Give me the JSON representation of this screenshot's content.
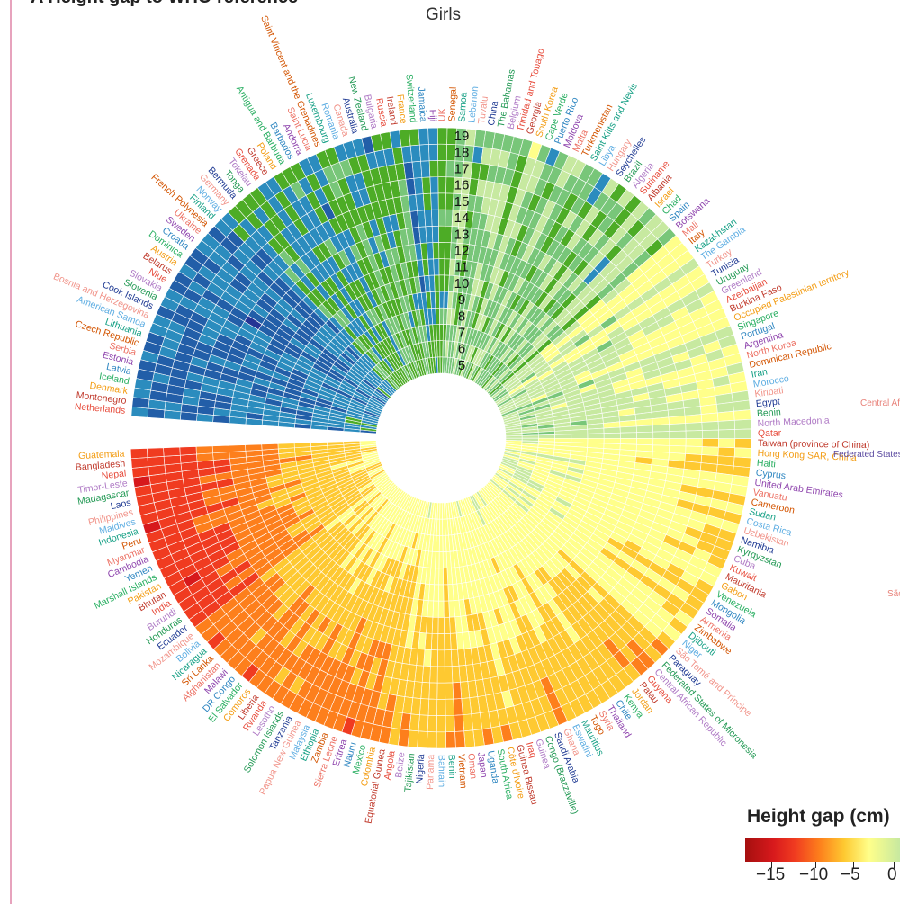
{
  "header": {
    "panel_label": "A  Height gap to WHO reference",
    "subtitle": "Girls"
  },
  "legend": {
    "title": "Height gap (cm)",
    "ticks": [
      "−15",
      "−10",
      "−5",
      "0"
    ]
  },
  "colors": {
    "scale": [
      "#a50f0f",
      "#d7191c",
      "#f03b20",
      "#fd7f1c",
      "#fec931",
      "#ffff8a",
      "#c7e9a0",
      "#78c679",
      "#4dac26",
      "#2b8cbe",
      "#225ea8",
      "#253494"
    ],
    "label_palette": [
      "#e74c3c",
      "#c0392b",
      "#f39c12",
      "#27ae60",
      "#2e86c1",
      "#8e44ad",
      "#ec7063",
      "#d35400",
      "#16a085",
      "#5dade2",
      "#f1948a",
      "#1f3a93",
      "#229954",
      "#af7ac5"
    ]
  },
  "chart_data": {
    "type": "radial-heatmap",
    "title": "Girls",
    "value_label": "Height gap (cm)",
    "ages": [
      5,
      6,
      7,
      8,
      9,
      10,
      11,
      12,
      13,
      14,
      15,
      16,
      17,
      18,
      19
    ],
    "age_labels": [
      "19",
      "18",
      "17",
      "16",
      "15",
      "14",
      "13",
      "12",
      "11",
      "10",
      "9",
      "8",
      "7",
      "6",
      "5"
    ],
    "countries": [
      "Netherlands",
      "Montenegro",
      "Denmark",
      "Iceland",
      "Latvia",
      "Estonia",
      "Serbia",
      "Czech Republic",
      "Lithuania",
      "American Samoa",
      "Bosnia and Herzegovina",
      "Cook Islands",
      "Slovenia",
      "Slovakia",
      "Niue",
      "Belarus",
      "Austria",
      "Dominica",
      "Croatia",
      "Sweden",
      "Ukraine",
      "French Polynesia",
      "Finland",
      "Norway",
      "Germany",
      "Bermuda",
      "Tonga",
      "Tokelau",
      "Grenada",
      "Greece",
      "Poland",
      "Antigua and Barbuda",
      "Barbados",
      "Andorra",
      "Saint Lucia",
      "Saint Vincent and the Grenadines",
      "Luxembourg",
      "Romania",
      "Canada",
      "Australia",
      "New Zealand",
      "Bulgaria",
      "Russia",
      "Ireland",
      "France",
      "Switzerland",
      "Jamaica",
      "Fiji",
      "UK",
      "Senegal",
      "Samoa",
      "Lebanon",
      "Tuvalu",
      "China",
      "The Bahamas",
      "Belgium",
      "Trinidad and Tobago",
      "Georgia",
      "South Korea",
      "Cape Verde",
      "Puerto Rico",
      "Moldova",
      "Malta",
      "Turkmenistan",
      "Saint Kitts and Nevis",
      "Libya",
      "Hungary",
      "Seychelles",
      "Brazil",
      "Algeria",
      "Suriname",
      "Albania",
      "Israel",
      "Chad",
      "Spain",
      "Botswana",
      "Mali",
      "Italy",
      "Kazakhstan",
      "The Gambia",
      "Turkey",
      "Tunisia",
      "Uruguay",
      "Greenland",
      "Azerbaijan",
      "Burkina Faso",
      "Occupied Palestinian territory",
      "Singapore",
      "Portugal",
      "Argentina",
      "North Korea",
      "Dominican Republic",
      "Iran",
      "Morocco",
      "Kiribati",
      "Egypt",
      "Benin",
      "North Macedonia",
      "Qatar",
      "Taiwan (province of China)",
      "Hong Kong SAR, China",
      "Haiti",
      "Cyprus",
      "United Arab Emirates",
      "Vanuatu",
      "Cameroon",
      "Sudan",
      "Costa Rica",
      "Uzbekistan",
      "Namibia",
      "Kyrgyzstan",
      "Cuba",
      "Kuwait",
      "Mauritania",
      "Gabon",
      "Venezuela",
      "Mongolia",
      "Somalia",
      "Armenia",
      "Zimbabwe",
      "Djibouti",
      "Niger",
      "São Tomé and Príncipe",
      "Paraguay",
      "Federated States of Micronesia",
      "Central African Republic",
      "Guyana",
      "Palau",
      "Jordan",
      "Kenya",
      "Chile",
      "Thailand",
      "Syria",
      "Togo",
      "Mauritius",
      "Eswatini",
      "Ghana",
      "Saudi Arabia",
      "Congo (Brazzaville)",
      "Guinea",
      "Iraq",
      "Guinea Bissau",
      "Côte d'Ivoire",
      "South Africa",
      "Uganda",
      "Japan",
      "Oman",
      "Vietnam",
      "Benin",
      "Bahrain",
      "Panama",
      "Nigeria",
      "Tajikistan",
      "Belize",
      "Angola",
      "Equatorial Guinea",
      "Colombia",
      "Mexico",
      "Nauru",
      "Eritrea",
      "Sierra Leone",
      "Zambia",
      "Ethiopia",
      "Malaysia",
      "Papua New Guinea",
      "Tanzania",
      "Solomon Islands",
      "Lesotho",
      "Rwanda",
      "Liberia",
      "Comoros",
      "El Salvador",
      "DR Congo",
      "Malawi",
      "Afghanistan",
      "Sri Lanka",
      "Nicaragua",
      "Bolivia",
      "Mozambique",
      "Ecuador",
      "Honduras",
      "Burundi",
      "India",
      "Bhutan",
      "Pakistan",
      "Marshall Islands",
      "Yemen",
      "Cambodia",
      "Myanmar",
      "Peru",
      "Indonesia",
      "Maldives",
      "Philippines",
      "Laos",
      "Madagascar",
      "Timor-Leste",
      "Nepal",
      "Bangladesh",
      "Guatemala"
    ],
    "outside_labels": [
      "Central Africa...",
      "Federated States o...",
      "São..."
    ],
    "value_range": [
      -17,
      3
    ],
    "color_scale": {
      "min": -17,
      "max": 3,
      "zero_color": "#ffff8a"
    }
  }
}
